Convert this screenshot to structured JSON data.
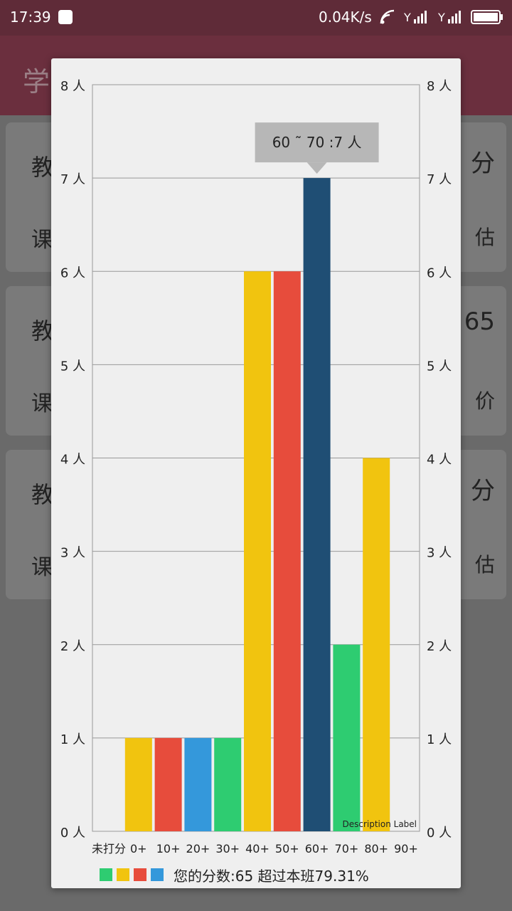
{
  "status": {
    "time": "17:39",
    "net_speed": "0.04K/s"
  },
  "app": {
    "title": "学"
  },
  "cards": [
    {
      "line1": "教",
      "line2": "课",
      "right1": "分",
      "right2": "估"
    },
    {
      "line1": "教",
      "line2": "课",
      "right1": "65",
      "right2": "价"
    },
    {
      "line1": "教",
      "line2": "课",
      "right1": "分",
      "right2": "估"
    }
  ],
  "chart_data": {
    "type": "bar",
    "categories": [
      "未打分",
      "0+",
      "10+",
      "20+",
      "30+",
      "40+",
      "50+",
      "60+",
      "70+",
      "80+",
      "90+"
    ],
    "values": [
      0,
      1,
      1,
      1,
      1,
      6,
      6,
      7,
      2,
      4,
      0
    ],
    "bar_colors": [
      "#f1c40f",
      "#f1c40f",
      "#e74c3c",
      "#3498db",
      "#2ecc71",
      "#f1c40f",
      "#e74c3c",
      "#1f4e74",
      "#2ecc71",
      "#f1c40f",
      "#e74c3c"
    ],
    "ylim": [
      0,
      8
    ],
    "y_ticks": [
      "0 人",
      "1 人",
      "2 人",
      "3 人",
      "4 人",
      "5 人",
      "6 人",
      "7 人",
      "8 人"
    ],
    "tooltip": "60 ˜ 70 :7 人",
    "tooltip_index": 7,
    "description": "Description Label",
    "grid": true
  },
  "legend": {
    "colors": [
      "#2ecc71",
      "#f1c40f",
      "#e74c3c",
      "#3498db"
    ],
    "text": "您的分数:65 超过本班79.31%"
  }
}
